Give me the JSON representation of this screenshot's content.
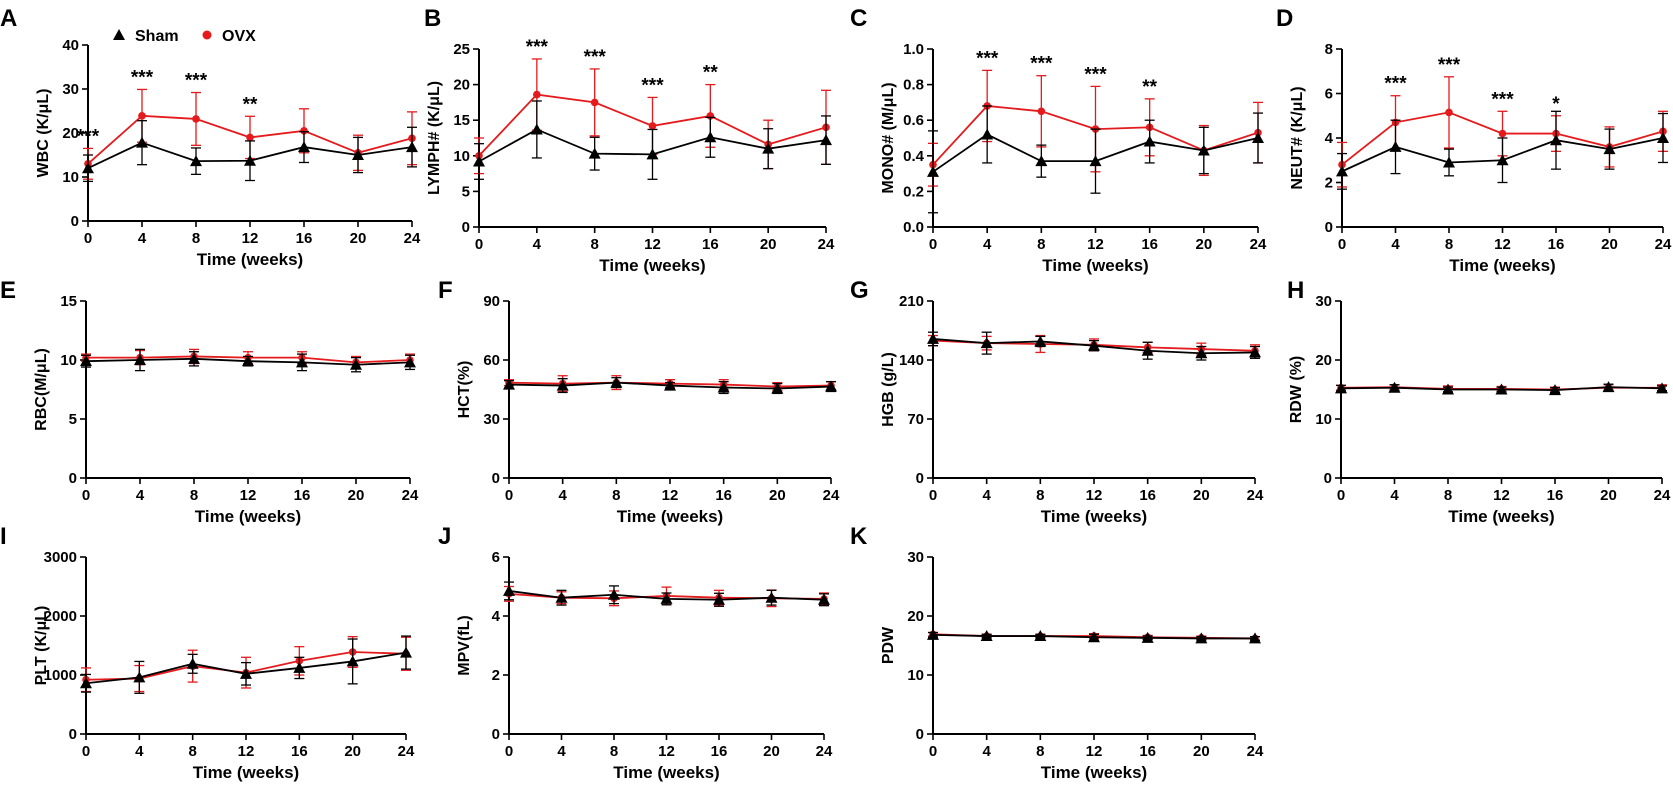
{
  "legend": {
    "sham_label": "Sham",
    "ovx_label": "OVX",
    "sham_color": "#000000",
    "ovx_color": "#e41a1c"
  },
  "chart_data": [
    {
      "id": "A",
      "type": "line",
      "ylabel": "WBC (K/μL)",
      "xlabel": "Time (weeks)",
      "x": [
        0,
        4,
        8,
        12,
        16,
        20,
        24
      ],
      "xticks": [
        "0",
        "4",
        "8",
        "12",
        "16",
        "20",
        "24"
      ],
      "ylim": [
        0,
        40
      ],
      "yticks": [
        "0",
        "10",
        "20",
        "30",
        "40"
      ],
      "series": [
        {
          "name": "Sham",
          "values": [
            12,
            17.8,
            13.6,
            13.7,
            16.8,
            15,
            16.8
          ],
          "errors": [
            3,
            5,
            3,
            4.5,
            3.5,
            4,
            4.5
          ]
        },
        {
          "name": "OVX",
          "values": [
            13,
            23.9,
            23.2,
            19,
            20.5,
            15.5,
            18.8
          ],
          "errors": [
            3.5,
            6,
            6,
            4.8,
            5,
            4,
            6
          ]
        }
      ],
      "annotations": [
        "***",
        "***",
        "***",
        "**",
        "",
        "",
        ""
      ]
    },
    {
      "id": "B",
      "type": "line",
      "ylabel": "LYMPH# (K/μL)",
      "xlabel": "Time (weeks)",
      "x": [
        0,
        4,
        8,
        12,
        16,
        20,
        24
      ],
      "xticks": [
        "0",
        "4",
        "8",
        "12",
        "16",
        "20",
        "24"
      ],
      "ylim": [
        0,
        25
      ],
      "yticks": [
        "0",
        "5",
        "10",
        "15",
        "20",
        "25"
      ],
      "series": [
        {
          "name": "Sham",
          "values": [
            9.2,
            13.7,
            10.3,
            10.2,
            12.6,
            11,
            12.2
          ],
          "errors": [
            2.5,
            4,
            2.3,
            3.5,
            2.8,
            2.8,
            3.4
          ]
        },
        {
          "name": "OVX",
          "values": [
            10,
            18.6,
            17.5,
            14.2,
            15.6,
            11.6,
            14
          ],
          "errors": [
            2.5,
            5,
            4.7,
            4,
            4.4,
            3.4,
            5.2
          ]
        }
      ],
      "annotations": [
        "",
        "***",
        "***",
        "***",
        "**",
        "",
        ""
      ]
    },
    {
      "id": "C",
      "type": "line",
      "ylabel": "MONO# (M/μL)",
      "xlabel": "Time (weeks)",
      "x": [
        0,
        4,
        8,
        12,
        16,
        20,
        24
      ],
      "xticks": [
        "0",
        "4",
        "8",
        "12",
        "16",
        "20",
        "24"
      ],
      "ylim": [
        0,
        1.0
      ],
      "yticks": [
        "0.0",
        "0.2",
        "0.4",
        "0.6",
        "0.8",
        "1.0"
      ],
      "series": [
        {
          "name": "Sham",
          "values": [
            0.31,
            0.52,
            0.37,
            0.37,
            0.48,
            0.43,
            0.5
          ],
          "errors": [
            0.23,
            0.16,
            0.09,
            0.18,
            0.12,
            0.13,
            0.14
          ]
        },
        {
          "name": "OVX",
          "values": [
            0.35,
            0.68,
            0.65,
            0.55,
            0.56,
            0.43,
            0.53
          ],
          "errors": [
            0.12,
            0.2,
            0.2,
            0.24,
            0.16,
            0.14,
            0.17
          ]
        }
      ],
      "annotations": [
        "",
        "***",
        "***",
        "***",
        "**",
        "",
        ""
      ]
    },
    {
      "id": "D",
      "type": "line",
      "ylabel": "NEUT# (K/μL)",
      "xlabel": "Time (weeks)",
      "x": [
        0,
        4,
        8,
        12,
        16,
        20,
        24
      ],
      "xticks": [
        "0",
        "4",
        "8",
        "12",
        "16",
        "20",
        "24"
      ],
      "ylim": [
        0,
        8
      ],
      "yticks": [
        "0",
        "2",
        "4",
        "6",
        "8"
      ],
      "series": [
        {
          "name": "Sham",
          "values": [
            2.5,
            3.6,
            2.9,
            3.0,
            3.9,
            3.5,
            4.0
          ],
          "errors": [
            0.8,
            1.2,
            0.6,
            1.0,
            1.3,
            0.9,
            1.1
          ]
        },
        {
          "name": "OVX",
          "values": [
            2.8,
            4.7,
            5.15,
            4.2,
            4.2,
            3.6,
            4.3
          ],
          "errors": [
            1.0,
            1.2,
            1.6,
            1.0,
            0.8,
            0.9,
            0.9
          ]
        }
      ],
      "annotations": [
        "",
        "***",
        "***",
        "***",
        "*",
        "",
        ""
      ]
    },
    {
      "id": "E",
      "type": "line",
      "ylabel": "RBC(M/μL)",
      "xlabel": "Time (weeks)",
      "x": [
        0,
        4,
        8,
        12,
        16,
        20,
        24
      ],
      "xticks": [
        "0",
        "4",
        "8",
        "12",
        "16",
        "20",
        "24"
      ],
      "ylim": [
        0,
        15
      ],
      "yticks": [
        "0",
        "5",
        "10",
        "15"
      ],
      "series": [
        {
          "name": "Sham",
          "values": [
            9.9,
            10,
            10.1,
            9.9,
            9.8,
            9.6,
            9.8
          ],
          "errors": [
            0.5,
            0.9,
            0.6,
            0.4,
            0.7,
            0.6,
            0.6
          ]
        },
        {
          "name": "OVX",
          "values": [
            10.2,
            10.2,
            10.3,
            10.2,
            10.2,
            9.8,
            10
          ],
          "errors": [
            0.3,
            0.6,
            0.6,
            0.5,
            0.5,
            0.5,
            0.5
          ]
        }
      ],
      "annotations": [
        "",
        "",
        "",
        "",
        "",
        "",
        ""
      ]
    },
    {
      "id": "F",
      "type": "line",
      "ylabel": "HCT(%)",
      "xlabel": "Time (weeks)",
      "x": [
        0,
        4,
        8,
        12,
        16,
        20,
        24
      ],
      "xticks": [
        "0",
        "4",
        "8",
        "12",
        "16",
        "20",
        "24"
      ],
      "ylim": [
        0,
        90
      ],
      "yticks": [
        "0",
        "30",
        "60",
        "90"
      ],
      "series": [
        {
          "name": "Sham",
          "values": [
            47.5,
            47,
            48.5,
            47,
            46,
            45.5,
            46.5
          ],
          "errors": [
            2,
            3.5,
            2.5,
            1.5,
            3,
            2.5,
            2.5
          ]
        },
        {
          "name": "OVX",
          "values": [
            48.5,
            48,
            48.5,
            48,
            47.5,
            46.5,
            47
          ],
          "errors": [
            1.5,
            4,
            3.5,
            2,
            2.5,
            2,
            2
          ]
        }
      ],
      "annotations": [
        "",
        "",
        "",
        "",
        "",
        "",
        ""
      ]
    },
    {
      "id": "G",
      "type": "line",
      "ylabel": "HGB (g/L)",
      "xlabel": "Time (weeks)",
      "x": [
        0,
        4,
        8,
        12,
        16,
        20,
        24
      ],
      "xticks": [
        "0",
        "4",
        "8",
        "12",
        "16",
        "20",
        "24"
      ],
      "ylim": [
        0,
        210
      ],
      "yticks": [
        "0",
        "70",
        "140",
        "210"
      ],
      "series": [
        {
          "name": "Sham",
          "values": [
            165,
            160,
            162,
            157,
            151,
            148,
            149
          ],
          "errors": [
            8,
            13,
            6,
            6,
            10,
            8,
            7
          ]
        },
        {
          "name": "OVX",
          "values": [
            163,
            160,
            159,
            158,
            155,
            153,
            151
          ],
          "errors": [
            6,
            8,
            10,
            7,
            6,
            7,
            7
          ]
        }
      ],
      "annotations": [
        "",
        "",
        "",
        "",
        "",
        "",
        ""
      ]
    },
    {
      "id": "H",
      "type": "line",
      "ylabel": "RDW (%)",
      "xlabel": "Time (weeks)",
      "x": [
        0,
        4,
        8,
        12,
        16,
        20,
        24
      ],
      "xticks": [
        "0",
        "4",
        "8",
        "12",
        "16",
        "20",
        "24"
      ],
      "ylim": [
        0,
        30
      ],
      "yticks": [
        "0",
        "10",
        "20",
        "30"
      ],
      "series": [
        {
          "name": "Sham",
          "values": [
            15.2,
            15.3,
            15,
            15,
            14.9,
            15.4,
            15.2
          ],
          "errors": [
            0.5,
            0.5,
            0.4,
            0.4,
            0.4,
            0.5,
            0.4
          ]
        },
        {
          "name": "OVX",
          "values": [
            15.3,
            15.4,
            15.1,
            15.1,
            15,
            15.3,
            15.3
          ],
          "errors": [
            0.4,
            0.4,
            0.5,
            0.4,
            0.4,
            0.5,
            0.5
          ]
        }
      ],
      "annotations": [
        "",
        "",
        "",
        "",
        "",
        "",
        ""
      ]
    },
    {
      "id": "I",
      "type": "line",
      "ylabel": "PLT (K/μL)",
      "xlabel": "Time (weeks)",
      "x": [
        0,
        4,
        8,
        12,
        16,
        20,
        24
      ],
      "xticks": [
        "0",
        "4",
        "8",
        "12",
        "16",
        "20",
        "24"
      ],
      "ylim": [
        0,
        3000
      ],
      "yticks": [
        "0",
        "1000",
        "2000",
        "3000"
      ],
      "series": [
        {
          "name": "Sham",
          "values": [
            860,
            960,
            1190,
            1020,
            1120,
            1230,
            1380
          ],
          "errors": [
            150,
            270,
            160,
            190,
            180,
            380,
            280
          ]
        },
        {
          "name": "OVX",
          "values": [
            920,
            940,
            1150,
            1040,
            1240,
            1390,
            1360
          ],
          "errors": [
            200,
            220,
            270,
            260,
            240,
            260,
            280
          ]
        }
      ],
      "annotations": [
        "",
        "",
        "",
        "",
        "",
        "",
        ""
      ]
    },
    {
      "id": "J",
      "type": "line",
      "ylabel": "MPV(fL)",
      "xlabel": "Time (weeks)",
      "x": [
        0,
        4,
        8,
        12,
        16,
        20,
        24
      ],
      "xticks": [
        "0",
        "4",
        "8",
        "12",
        "16",
        "20",
        "24"
      ],
      "ylim": [
        0,
        6
      ],
      "yticks": [
        "0",
        "2",
        "4",
        "6"
      ],
      "series": [
        {
          "name": "Sham",
          "values": [
            4.85,
            4.62,
            4.72,
            4.58,
            4.55,
            4.62,
            4.55
          ],
          "errors": [
            0.3,
            0.25,
            0.3,
            0.2,
            0.22,
            0.25,
            0.2
          ]
        },
        {
          "name": "OVX",
          "values": [
            4.75,
            4.62,
            4.6,
            4.68,
            4.62,
            4.6,
            4.58
          ],
          "errors": [
            0.25,
            0.2,
            0.25,
            0.3,
            0.25,
            0.28,
            0.2
          ]
        }
      ],
      "annotations": [
        "",
        "",
        "",
        "",
        "",
        "",
        ""
      ]
    },
    {
      "id": "K",
      "type": "line",
      "ylabel": "PDW",
      "xlabel": "Time (weeks)",
      "x": [
        0,
        4,
        8,
        12,
        16,
        20,
        24
      ],
      "xticks": [
        "0",
        "4",
        "8",
        "12",
        "16",
        "20",
        "24"
      ],
      "ylim": [
        0,
        30
      ],
      "yticks": [
        "0",
        "10",
        "20",
        "30"
      ],
      "series": [
        {
          "name": "Sham",
          "values": [
            16.8,
            16.6,
            16.6,
            16.4,
            16.3,
            16.2,
            16.2
          ],
          "errors": [
            0.4,
            0.3,
            0.3,
            0.5,
            0.3,
            0.3,
            0.3
          ]
        },
        {
          "name": "OVX",
          "values": [
            16.9,
            16.6,
            16.6,
            16.6,
            16.4,
            16.3,
            16.2
          ],
          "errors": [
            0.3,
            0.3,
            0.3,
            0.4,
            0.3,
            0.3,
            0.3
          ]
        }
      ],
      "annotations": [
        "",
        "",
        "",
        "",
        "",
        "",
        ""
      ]
    }
  ]
}
